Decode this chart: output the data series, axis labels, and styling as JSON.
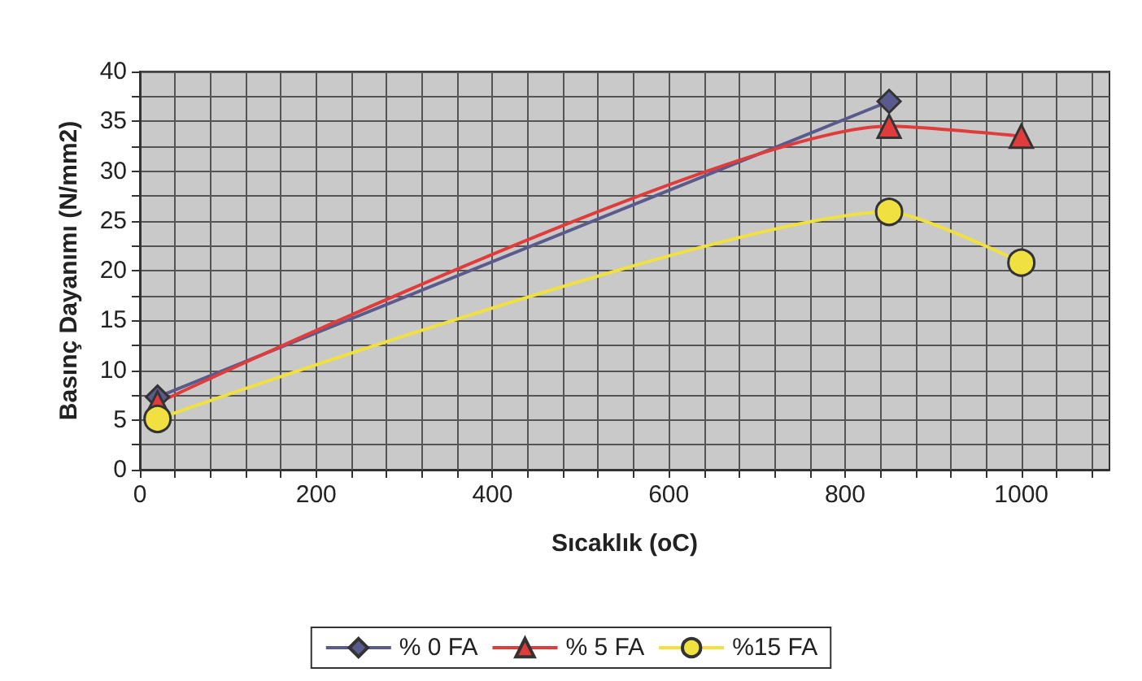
{
  "chart_data": {
    "type": "line",
    "xlabel": "Sıcaklık (oC)",
    "ylabel": "Basınç Dayanımı (N/mm2)",
    "xlim": [
      0,
      1100
    ],
    "xticks": [
      0,
      {
        "value": 40,
        "label": null
      },
      {
        "value": 80,
        "label": null
      },
      {
        "value": 120,
        "label": null
      },
      {
        "value": 160,
        "label": null
      },
      200,
      {
        "value": 240,
        "label": null
      },
      {
        "value": 280,
        "label": null
      },
      {
        "value": 320,
        "label": null
      },
      {
        "value": 360,
        "label": null
      },
      400,
      {
        "value": 440,
        "label": null
      },
      {
        "value": 480,
        "label": null
      },
      {
        "value": 520,
        "label": null
      },
      {
        "value": 560,
        "label": null
      },
      600,
      {
        "value": 640,
        "label": null
      },
      {
        "value": 680,
        "label": null
      },
      {
        "value": 720,
        "label": null
      },
      {
        "value": 760,
        "label": null
      },
      800,
      {
        "value": 840,
        "label": null
      },
      {
        "value": 880,
        "label": null
      },
      {
        "value": 920,
        "label": null
      },
      {
        "value": 960,
        "label": null
      },
      1000,
      {
        "value": 1040,
        "label": null
      },
      {
        "value": 1080,
        "label": null
      }
    ],
    "ylim": [
      0,
      40
    ],
    "yticks": [
      0,
      {
        "value": 2.5,
        "label": null
      },
      5,
      {
        "value": 7.5,
        "label": null
      },
      10,
      {
        "value": 12.5,
        "label": null
      },
      15,
      {
        "value": 17.5,
        "label": null
      },
      20,
      {
        "value": 22.5,
        "label": null
      },
      25,
      {
        "value": 27.5,
        "label": null
      },
      30,
      {
        "value": 32.5,
        "label": null
      },
      35,
      {
        "value": 37.5,
        "label": null
      },
      40
    ],
    "grid": true,
    "legend": "bottom",
    "series": [
      {
        "name": "% 0 FA",
        "color": "#5a5a8c",
        "marker": "diamond",
        "x": [
          20,
          850
        ],
        "values": [
          7.3,
          37
        ]
      },
      {
        "name": "% 5 FA",
        "color": "#e03c3c",
        "marker": "triangle",
        "x": [
          20,
          850,
          1000
        ],
        "values": [
          6.7,
          34.5,
          33.5
        ]
      },
      {
        "name": "%15 FA",
        "color": "#f0e040",
        "marker": "circle",
        "x": [
          20,
          850,
          1000
        ],
        "values": [
          5.1,
          25.9,
          20.8
        ]
      }
    ]
  }
}
